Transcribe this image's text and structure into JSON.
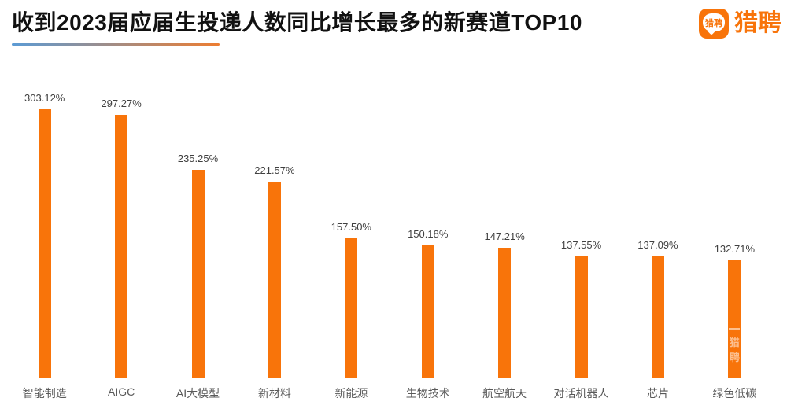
{
  "header": {
    "title": "收到2023届应届生投递人数同比增长最多的新赛道TOP10",
    "logo_wordmark": "猎聘",
    "logo_icon_text": "猎聘"
  },
  "colors": {
    "bar": "#F8740A",
    "logo": "#F8740A",
    "title": "#111111",
    "value_label": "#404040",
    "category_label": "#595959",
    "underline_start": "#5B9BD5",
    "underline_end": "#ED7D31"
  },
  "chart_data": {
    "type": "bar",
    "title": "收到2023届应届生投递人数同比增长最多的新赛道TOP10",
    "categories": [
      "智能制造",
      "AIGC",
      "AI大模型",
      "新材料",
      "新能源",
      "生物技术",
      "航空航天",
      "对话机器人",
      "芯片",
      "绿色低碳"
    ],
    "values": [
      303.12,
      297.27,
      235.25,
      221.57,
      157.5,
      150.18,
      147.21,
      137.55,
      137.09,
      132.71
    ],
    "value_labels": [
      "303.12%",
      "297.27%",
      "235.25%",
      "221.57%",
      "157.50%",
      "150.18%",
      "147.21%",
      "137.55%",
      "137.09%",
      "132.71%"
    ],
    "unit": "%",
    "xlabel": "",
    "ylabel": "",
    "ylim": [
      0,
      340
    ],
    "grid": false,
    "legend": false,
    "bar_color": "#F8740A"
  },
  "watermark": {
    "text": "猎聘",
    "bar_index": 9
  }
}
